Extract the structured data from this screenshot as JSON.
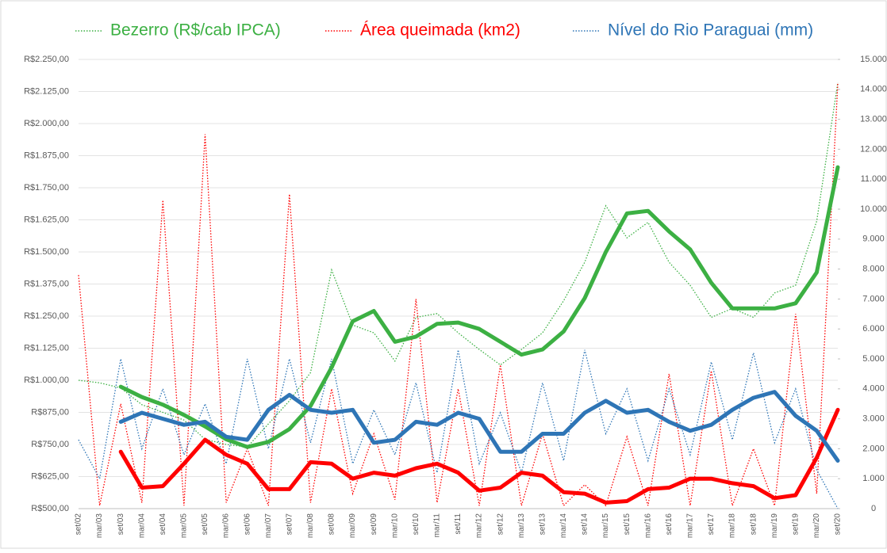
{
  "chart_data": {
    "type": "line",
    "categories": [
      "set/02",
      "mar/03",
      "set/03",
      "mar/04",
      "set/04",
      "mar/05",
      "set/05",
      "mar/06",
      "set/06",
      "mar/07",
      "set/07",
      "mar/08",
      "set/08",
      "mar/09",
      "set/09",
      "mar/10",
      "set/10",
      "mar/11",
      "set/11",
      "mar/12",
      "set/12",
      "mar/13",
      "set/13",
      "mar/14",
      "set/14",
      "mar/15",
      "set/15",
      "mar/16",
      "set/16",
      "mar/17",
      "set/17",
      "mar/18",
      "set/18",
      "mar/19",
      "set/19",
      "mar/20",
      "set/20"
    ],
    "series": [
      {
        "name": "Bezerro (R$/cab IPCA)",
        "color": "#3cb043",
        "axis": "y",
        "values": [
          1000,
          990,
          970,
          905,
          875,
          845,
          770,
          750,
          740,
          830,
          920,
          1030,
          1430,
          1215,
          1185,
          1075,
          1245,
          1260,
          1185,
          1120,
          1060,
          1120,
          1185,
          1310,
          1460,
          1680,
          1555,
          1615,
          1460,
          1370,
          1245,
          1280,
          1245,
          1340,
          1370,
          1620,
          2160
        ],
        "trend": [
          null,
          null,
          975,
          935,
          905,
          865,
          820,
          770,
          740,
          760,
          810,
          900,
          1050,
          1230,
          1270,
          1150,
          1170,
          1220,
          1225,
          1200,
          1150,
          1100,
          1120,
          1190,
          1320,
          1500,
          1650,
          1660,
          1580,
          1510,
          1380,
          1280,
          1280,
          1280,
          1300,
          1420,
          1830
        ]
      },
      {
        "name": "Área queimada (km2)",
        "color": "#ff0000",
        "axis": "y2",
        "values": [
          7800,
          100,
          3500,
          200,
          10300,
          100,
          12500,
          200,
          2000,
          100,
          10500,
          200,
          4000,
          500,
          2500,
          300,
          7000,
          200,
          4000,
          100,
          4800,
          100,
          2500,
          100,
          800,
          100,
          2400,
          100,
          4500,
          100,
          4600,
          100,
          2000,
          100,
          6500,
          500,
          14200
        ],
        "trend": [
          null,
          null,
          1900,
          700,
          750,
          1500,
          2300,
          1800,
          1500,
          650,
          650,
          1550,
          1500,
          1000,
          1200,
          1100,
          1350,
          1500,
          1200,
          600,
          700,
          1200,
          1100,
          550,
          500,
          200,
          250,
          650,
          700,
          1000,
          1000,
          850,
          750,
          350,
          450,
          1700,
          3300
        ]
      },
      {
        "name": "Nível do Rio Paraguai (mm)",
        "color": "#2e75b6",
        "axis": "y2",
        "values": [
          2300,
          1000,
          5000,
          2000,
          4000,
          1800,
          3500,
          1500,
          5000,
          2000,
          5000,
          2200,
          5000,
          1500,
          3300,
          1800,
          4200,
          1200,
          5300,
          1500,
          3200,
          1200,
          4200,
          1600,
          5300,
          2500,
          4000,
          1600,
          4000,
          1800,
          4900,
          2300,
          5200,
          2200,
          4000,
          1300,
          0
        ],
        "trend": [
          null,
          null,
          2900,
          3200,
          3000,
          2800,
          2900,
          2400,
          2300,
          3300,
          3800,
          3300,
          3200,
          3300,
          2200,
          2300,
          2900,
          2800,
          3200,
          3000,
          1900,
          1900,
          2500,
          2500,
          3200,
          3600,
          3200,
          3300,
          2900,
          2600,
          2800,
          3300,
          3700,
          3900,
          3100,
          2600,
          1600
        ]
      }
    ],
    "ylim": [
      500,
      2250
    ],
    "yticks": [
      {
        "value": 500,
        "label": "R$500,00"
      },
      {
        "value": 625,
        "label": "R$625,00"
      },
      {
        "value": 750,
        "label": "R$750,00"
      },
      {
        "value": 875,
        "label": "R$875,00"
      },
      {
        "value": 1000,
        "label": "R$1.000,00"
      },
      {
        "value": 1125,
        "label": "R$1.125,00"
      },
      {
        "value": 1250,
        "label": "R$1.250,00"
      },
      {
        "value": 1375,
        "label": "R$1.375,00"
      },
      {
        "value": 1500,
        "label": "R$1.500,00"
      },
      {
        "value": 1625,
        "label": "R$1.625,00"
      },
      {
        "value": 1750,
        "label": "R$1.750,00"
      },
      {
        "value": 1875,
        "label": "R$1.875,00"
      },
      {
        "value": 2000,
        "label": "R$2.000,00"
      },
      {
        "value": 2125,
        "label": "R$2.125,00"
      },
      {
        "value": 2250,
        "label": "R$2.250,00"
      }
    ],
    "y2lim": [
      0,
      15000
    ],
    "y2ticks": [
      0,
      {
        "value": 1000,
        "label": "1.000"
      },
      {
        "value": 2000,
        "label": "2.000"
      },
      {
        "value": 3000,
        "label": "3.000"
      },
      {
        "value": 4000,
        "label": "4.000"
      },
      {
        "value": 5000,
        "label": "5.000"
      },
      {
        "value": 6000,
        "label": "6.000"
      },
      {
        "value": 7000,
        "label": "7.000"
      },
      {
        "value": 8000,
        "label": "8.000"
      },
      {
        "value": 9000,
        "label": "9.000"
      },
      {
        "value": 10000,
        "label": "10.000"
      },
      {
        "value": 11000,
        "label": "11.000"
      },
      {
        "value": 12000,
        "label": "12.000"
      },
      {
        "value": 13000,
        "label": "13.000"
      },
      {
        "value": 14000,
        "label": "14.000"
      },
      {
        "value": 15000,
        "label": "15.000"
      }
    ],
    "legend": "top"
  }
}
